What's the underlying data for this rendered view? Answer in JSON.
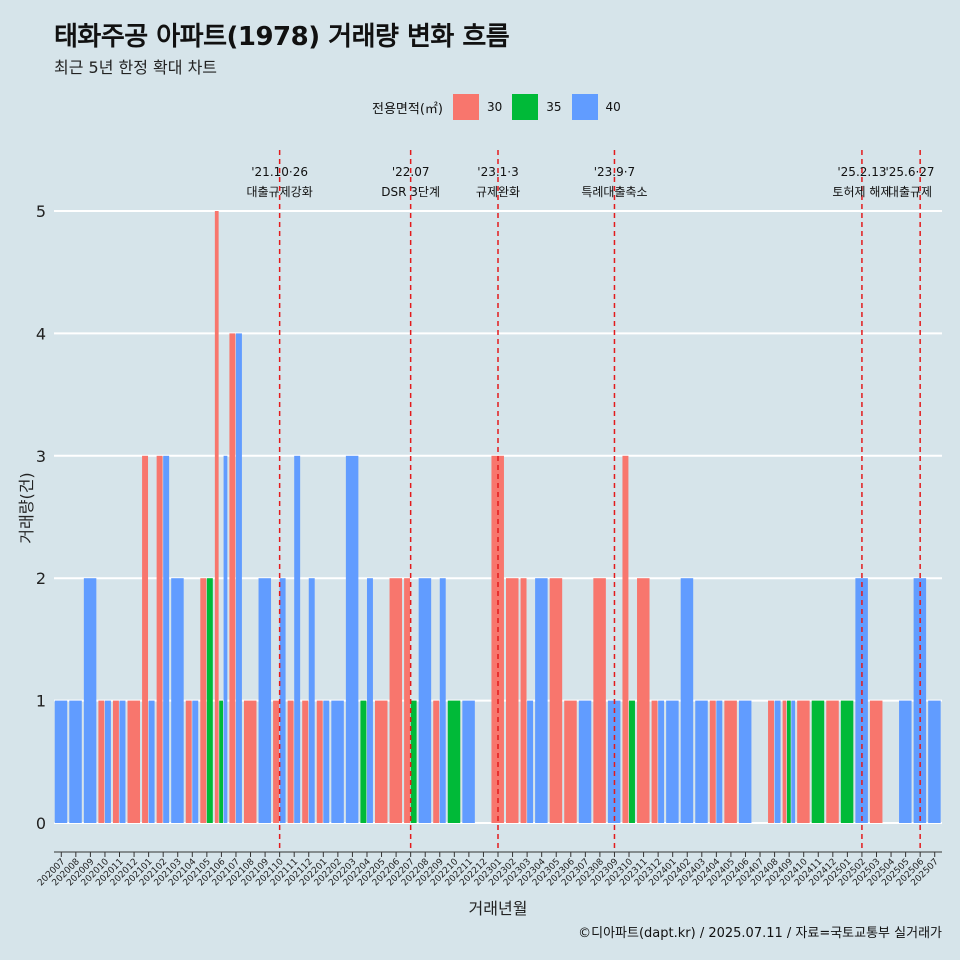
{
  "title": "태화주공 아파트(1978) 거래량 변화 흐름",
  "subtitle": "최근 5년 한정 확대 차트",
  "caption": "©디아파트(dapt.kr) / 2025.07.11 / 자료=국토교통부 실거래가",
  "legend": {
    "title": "전용면적(㎡)",
    "items": [
      {
        "label": "30",
        "color": "#F8766D"
      },
      {
        "label": "35",
        "color": "#00BA38"
      },
      {
        "label": "40",
        "color": "#619CFF"
      }
    ]
  },
  "chart_data": {
    "type": "bar",
    "xlabel": "거래년월",
    "ylabel": "거래량(건)",
    "ylim": [
      0,
      5
    ],
    "yticks": [
      0,
      1,
      2,
      3,
      4,
      5
    ],
    "grid": true,
    "legend_position": "top",
    "categories": [
      "202007",
      "202008",
      "202009",
      "202010",
      "202011",
      "202012",
      "202101",
      "202102",
      "202103",
      "202104",
      "202105",
      "202106",
      "202107",
      "202108",
      "202109",
      "202110",
      "202111",
      "202112",
      "202201",
      "202202",
      "202203",
      "202204",
      "202205",
      "202206",
      "202207",
      "202208",
      "202209",
      "202210",
      "202211",
      "202212",
      "202301",
      "202302",
      "202303",
      "202304",
      "202305",
      "202306",
      "202307",
      "202308",
      "202309",
      "202310",
      "202311",
      "202312",
      "202401",
      "202402",
      "202403",
      "202404",
      "202405",
      "202406",
      "202407",
      "202408",
      "202409",
      "202410",
      "202411",
      "202412",
      "202501",
      "202502",
      "202503",
      "202504",
      "202505",
      "202506",
      "202507"
    ],
    "series": [
      {
        "name": "30",
        "color": "#F8766D",
        "values": [
          0,
          0,
          0,
          1,
          1,
          1,
          3,
          3,
          0,
          1,
          2,
          5,
          4,
          1,
          0,
          1,
          1,
          1,
          1,
          0,
          0,
          0,
          1,
          2,
          2,
          0,
          1,
          0,
          0,
          0,
          3,
          2,
          2,
          0,
          2,
          1,
          0,
          2,
          0,
          3,
          2,
          1,
          0,
          0,
          0,
          1,
          1,
          0,
          0,
          1,
          1,
          1,
          0,
          1,
          0,
          0,
          1,
          0,
          0,
          0,
          0
        ]
      },
      {
        "name": "35",
        "color": "#00BA38",
        "values": [
          0,
          0,
          0,
          0,
          0,
          0,
          0,
          0,
          0,
          0,
          2,
          1,
          0,
          0,
          0,
          0,
          0,
          0,
          0,
          0,
          0,
          1,
          0,
          0,
          1,
          0,
          0,
          1,
          0,
          0,
          0,
          0,
          0,
          0,
          0,
          0,
          0,
          0,
          0,
          1,
          0,
          0,
          0,
          0,
          0,
          0,
          0,
          0,
          0,
          0,
          1,
          0,
          1,
          0,
          1,
          0,
          0,
          0,
          0,
          0,
          0
        ]
      },
      {
        "name": "40",
        "color": "#619CFF",
        "values": [
          1,
          1,
          2,
          1,
          1,
          0,
          1,
          3,
          2,
          1,
          0,
          3,
          4,
          0,
          2,
          2,
          3,
          2,
          1,
          1,
          3,
          2,
          0,
          0,
          0,
          2,
          2,
          0,
          1,
          0,
          0,
          0,
          1,
          2,
          0,
          0,
          1,
          0,
          1,
          0,
          0,
          1,
          1,
          2,
          1,
          1,
          0,
          1,
          0,
          1,
          1,
          0,
          0,
          0,
          0,
          2,
          0,
          0,
          1,
          2,
          1
        ]
      }
    ],
    "annotations": [
      {
        "date": "'21.10·26",
        "label": "대출규제강화",
        "at": "202110"
      },
      {
        "date": "'22.07",
        "label": "DSR 3단계",
        "at": "202207"
      },
      {
        "date": "'23.1·3",
        "label": "규제완화",
        "at": "202301"
      },
      {
        "date": "'23.9·7",
        "label": "특례대출축소",
        "at": "202309"
      },
      {
        "date": "'25.2.13",
        "label": "토허제 해제",
        "at": "202502"
      },
      {
        "date": "'25.6·27",
        "label": "대출규제",
        "at": "202506"
      }
    ]
  }
}
